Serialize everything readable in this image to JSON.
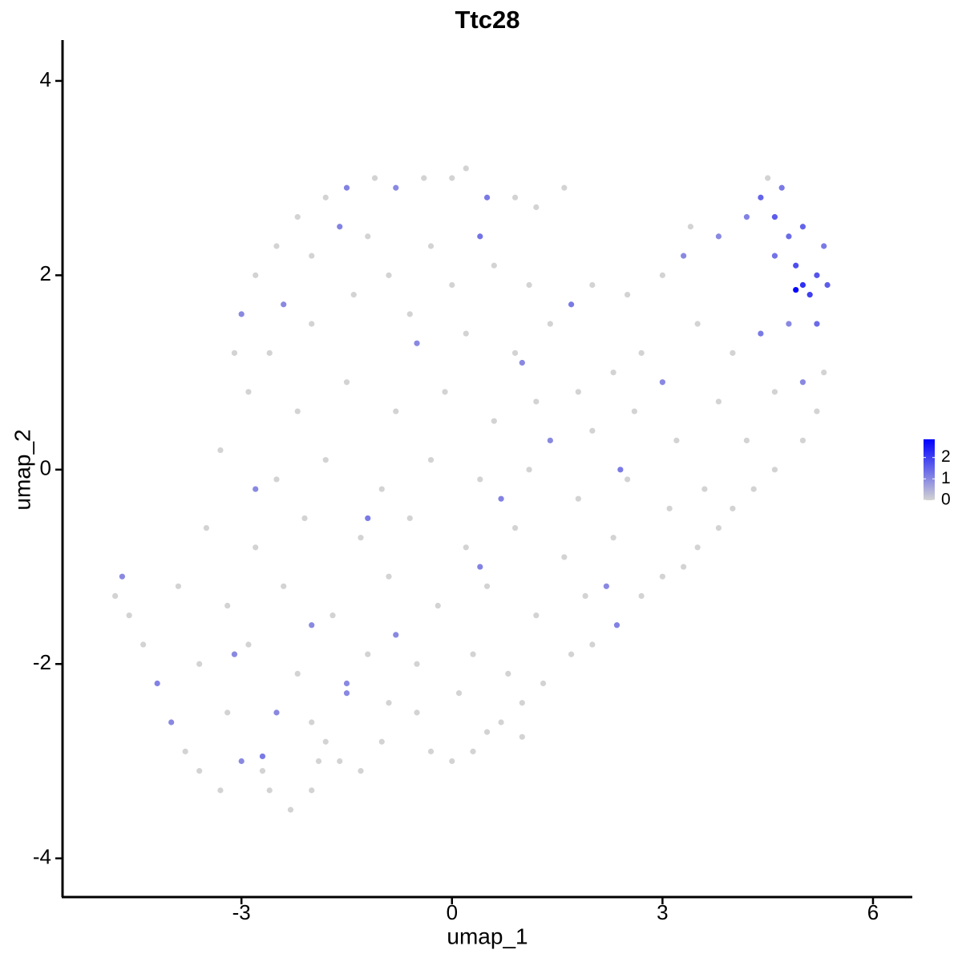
{
  "chart_data": {
    "type": "scatter",
    "title": "Ttc28",
    "x_label": "umap_1",
    "y_label": "umap_2",
    "xlim": [
      -5.55,
      6.56
    ],
    "ylim": [
      -4.39,
      4.42
    ],
    "xticks": [
      -3,
      0,
      3,
      6
    ],
    "yticks": [
      -4,
      -2,
      0,
      2,
      4
    ],
    "color_low": "#d3d3d3",
    "color_high": "#0000ff",
    "colorlim": [
      0,
      2.85
    ],
    "colorticks": [
      0,
      1,
      2
    ],
    "x": [
      -4.7,
      -4.8,
      -4.6,
      -4.4,
      -4.2,
      -4.0,
      -3.8,
      -3.6,
      -3.3,
      -3.0,
      -2.7,
      -2.6,
      -2.3,
      -2.0,
      -2.5,
      -2.0,
      -1.5,
      -1.3,
      -1.6,
      -1.0,
      -0.5,
      -0.3,
      0.0,
      0.3,
      0.5,
      0.7,
      1.0,
      1.0,
      1.3,
      1.7,
      2.0,
      2.35,
      2.7,
      3.0,
      3.3,
      3.5,
      3.8,
      4.0,
      4.3,
      4.6,
      5.0,
      5.2,
      5.0,
      5.3,
      -3.0,
      -2.8,
      -2.5,
      -2.2,
      -1.8,
      -1.5,
      -1.1,
      -0.8,
      -0.4,
      0.0,
      0.2,
      0.9,
      1.2,
      1.6,
      3.4,
      4.5,
      2.0,
      2.5,
      3.0,
      2.7,
      2.3,
      1.8,
      1.4,
      3.5,
      4.0,
      3.8,
      3.2,
      3.6,
      4.2,
      -2.6,
      -2.0,
      -1.4,
      -0.6,
      0.2,
      0.9,
      -2.9,
      -2.2,
      -1.5,
      -0.8,
      -0.1,
      0.6,
      1.2,
      2.0,
      2.6,
      4.6,
      -3.3,
      -2.5,
      -1.8,
      -1.0,
      -0.3,
      0.4,
      1.1,
      1.8,
      2.5,
      3.1,
      -3.5,
      -2.8,
      -2.1,
      -1.3,
      -0.6,
      0.2,
      0.9,
      1.6,
      2.3,
      -3.9,
      -3.2,
      -2.4,
      -1.7,
      -0.9,
      -0.2,
      0.5,
      1.2,
      1.9,
      -3.6,
      -2.9,
      -2.2,
      -1.2,
      -0.5,
      0.3,
      -3.2,
      -1.8,
      -0.9,
      0.1,
      0.8,
      -2.7,
      -1.9,
      -3.1,
      -2.0,
      -1.2,
      -0.3,
      0.6,
      -0.9,
      0.0,
      1.1,
      -2.4,
      -1.6,
      -0.5,
      0.4,
      1.0,
      -2.8,
      -1.2,
      0.7,
      1.4,
      -3.1,
      -2.0,
      -0.8,
      0.4,
      2.2,
      -1.5,
      3.0,
      2.4,
      1.7,
      3.3,
      0.5,
      3.8,
      4.2,
      4.4,
      4.8,
      4.6,
      4.4,
      4.7,
      5.3,
      5.0,
      4.6,
      4.8,
      5.2,
      5.35,
      5.2,
      4.9,
      5.1,
      5.0,
      4.9
    ],
    "values": [
      -1.1,
      -1.3,
      -1.5,
      -1.8,
      -2.2,
      -2.6,
      -2.9,
      -3.1,
      -3.3,
      -3.0,
      -2.95,
      -3.3,
      -3.5,
      -3.3,
      -2.5,
      -2.6,
      -2.2,
      -3.1,
      -3.0,
      -2.8,
      -2.5,
      -2.9,
      -3.0,
      -2.9,
      -2.7,
      -2.6,
      -2.75,
      -2.4,
      -2.2,
      -1.9,
      -1.8,
      -1.6,
      -1.3,
      -1.1,
      -1.0,
      -0.8,
      -0.6,
      -0.4,
      -0.2,
      0.0,
      0.3,
      0.6,
      0.9,
      1.0,
      1.6,
      2.0,
      2.3,
      2.6,
      2.8,
      2.9,
      3.0,
      2.9,
      3.0,
      3.0,
      3.1,
      2.8,
      2.7,
      2.9,
      2.5,
      3.0,
      1.9,
      1.8,
      2.0,
      1.2,
      1.0,
      0.8,
      1.5,
      1.5,
      1.2,
      0.7,
      0.3,
      -0.2,
      0.3,
      1.2,
      1.5,
      1.8,
      1.6,
      1.4,
      1.2,
      0.8,
      0.6,
      0.9,
      0.6,
      0.8,
      0.5,
      0.7,
      0.4,
      0.6,
      0.8,
      0.2,
      -0.1,
      0.1,
      -0.2,
      0.1,
      -0.1,
      0.0,
      -0.3,
      -0.1,
      -0.4,
      -0.6,
      -0.8,
      -0.5,
      -0.7,
      -0.5,
      -0.8,
      -0.6,
      -0.9,
      -0.7,
      -1.2,
      -1.4,
      -1.2,
      -1.5,
      -1.1,
      -1.4,
      -1.2,
      -1.5,
      -1.3,
      -2.0,
      -1.8,
      -2.1,
      -1.9,
      -2.0,
      -1.9,
      -2.5,
      -2.8,
      -2.4,
      -2.3,
      -2.1,
      -3.1,
      -3.0,
      1.2,
      2.2,
      2.4,
      2.3,
      2.1,
      2.0,
      1.9,
      1.9,
      1.7,
      2.5,
      1.3,
      2.4,
      1.1,
      -0.2,
      -0.5,
      -0.3,
      0.3,
      -1.9,
      -1.6,
      -1.7,
      -1.0,
      -1.2,
      -2.3,
      0.9,
      0.0,
      1.7,
      2.2,
      2.8,
      2.4,
      2.6,
      1.4,
      1.5,
      2.2,
      2.8,
      2.9,
      2.3,
      2.5,
      2.6,
      2.4,
      1.5,
      1.9,
      2.0,
      2.1,
      1.8,
      1.9,
      1.85
    ],
    "expression": [
      1.0,
      0,
      0,
      0,
      1.1,
      1.0,
      0,
      0,
      0,
      1.0,
      1.2,
      0,
      0,
      0,
      1.0,
      0,
      1.0,
      0,
      0,
      0,
      0,
      0,
      0,
      0,
      0,
      0,
      0,
      0,
      0,
      0,
      0,
      1.1,
      0,
      0,
      0,
      0,
      0,
      0,
      0,
      0,
      0,
      0,
      1.0,
      0,
      1.0,
      0,
      0,
      0,
      0,
      1.1,
      0,
      1.0,
      0,
      0,
      0,
      0,
      0,
      0,
      0,
      0,
      0,
      0,
      0,
      0,
      0,
      0,
      0,
      0,
      0,
      0,
      0,
      0,
      0,
      0,
      0,
      0,
      0,
      0,
      0,
      0,
      0,
      0,
      0,
      0,
      0,
      0,
      0,
      0,
      0,
      0,
      0,
      0,
      0,
      0,
      0,
      0,
      0,
      0,
      0,
      0,
      0,
      0,
      0,
      0,
      0,
      0,
      0,
      0,
      0,
      0,
      0,
      0,
      0,
      0,
      0,
      0,
      0,
      0,
      0,
      0,
      0,
      0,
      0,
      0,
      0,
      0,
      0,
      0,
      0,
      0,
      0,
      0,
      0,
      0,
      0,
      0,
      0,
      0,
      1.0,
      1.1,
      1.0,
      1.3,
      1.0,
      1.0,
      1.2,
      1.1,
      1.0,
      1.0,
      1.0,
      1.0,
      1.1,
      1.0,
      1.0,
      1.0,
      1.2,
      1.2,
      1.0,
      1.2,
      1.0,
      1.1,
      1.2,
      1.0,
      1.3,
      1.5,
      1.2,
      1.2,
      1.5,
      1.6,
      1.4,
      1.4,
      1.6,
      1.7,
      1.8,
      2.0,
      2.2,
      2.8
    ]
  }
}
